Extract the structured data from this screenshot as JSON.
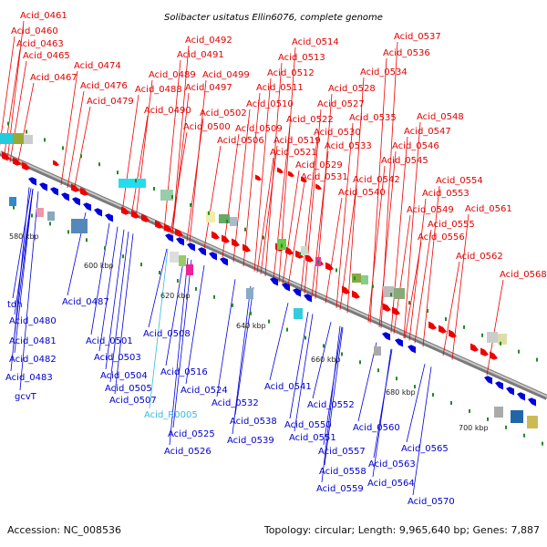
{
  "title": "Solibacter usitatus Ellin6076, complete genome",
  "footer": {
    "accession": "Accession: NC_008536",
    "summary": "Topology: circular; Length: 9,965,640 bp; Genes: 7,887"
  },
  "colors": {
    "forward": "#ee0000",
    "reverse": "#0000dd",
    "rna": "#33bbdd",
    "spine": "#999999",
    "dots": "#228b22"
  },
  "ticks": [
    "580 kbp",
    "600 kbp",
    "620 kbp",
    "640 kbp",
    "660 kbp",
    "680 kbp",
    "700 kbp"
  ],
  "top_labels": [
    "Acid_0461",
    "Acid_0460",
    "Acid_0463",
    "Acid_0465",
    "Acid_0467",
    "Acid_0474",
    "Acid_0476",
    "Acid_0479",
    "Acid_0492",
    "Acid_0491",
    "Acid_0489",
    "Acid_0488",
    "Acid_0490",
    "Acid_0499",
    "Acid_0497",
    "Acid_0502",
    "Acid_0500",
    "Acid_0506",
    "Acid_0514",
    "Acid_0513",
    "Acid_0512",
    "Acid_0511",
    "Acid_0510",
    "Acid_0509",
    "Acid_0522",
    "Acid_0519",
    "Acid_0521",
    "Acid_0537",
    "Acid_0536",
    "Acid_0534",
    "Acid_0528",
    "Acid_0527",
    "Acid_0535",
    "Acid_0530",
    "Acid_0533",
    "Acid_0529",
    "Acid_0531",
    "Acid_0548",
    "Acid_0547",
    "Acid_0546",
    "Acid_0545",
    "Acid_0542",
    "Acid_0540",
    "Acid_0554",
    "Acid_0553",
    "Acid_0549",
    "Acid_0561",
    "Acid_0555",
    "Acid_0556",
    "Acid_0562",
    "Acid_0568"
  ],
  "bottom_labels": [
    "tdh",
    "Acid_0480",
    "Acid_0487",
    "Acid_0481",
    "Acid_0482",
    "Acid_0483",
    "gcvT",
    "Acid_0501",
    "Acid_0508",
    "Acid_0503",
    "Acid_0504",
    "Acid_0505",
    "Acid_0507",
    "Acid_0516",
    "Acid_0524",
    "Acid_R0005",
    "Acid_0525",
    "Acid_0526",
    "Acid_0532",
    "Acid_0541",
    "Acid_0538",
    "Acid_0539",
    "Acid_0552",
    "Acid_0550",
    "Acid_0551",
    "Acid_0560",
    "Acid_0557",
    "Acid_0558",
    "Acid_0559",
    "Acid_0565",
    "Acid_0563",
    "Acid_0564",
    "Acid_0570"
  ]
}
